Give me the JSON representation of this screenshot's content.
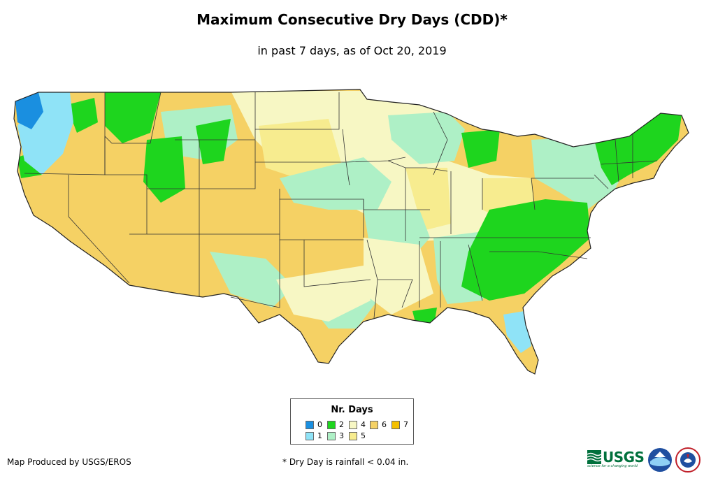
{
  "title": "Maximum Consecutive Dry Days (CDD)*",
  "subtitle": "in past 7 days, as of Oct 20, 2019",
  "legend": {
    "title": "Nr. Days",
    "items": [
      {
        "label": "0",
        "color": "#1a8fe0"
      },
      {
        "label": "1",
        "color": "#8fe3f7"
      },
      {
        "label": "2",
        "color": "#1ed51e"
      },
      {
        "label": "3",
        "color": "#aef0c6"
      },
      {
        "label": "4",
        "color": "#f7f7c4"
      },
      {
        "label": "5",
        "color": "#f7ec8f"
      },
      {
        "label": "6",
        "color": "#f5d164"
      },
      {
        "label": "7",
        "color": "#f5c000"
      }
    ]
  },
  "footer": {
    "credit": "Map Produced by USGS/EROS",
    "note": "* Dry Day is rainfall < 0.04 in."
  },
  "logos": {
    "usgs_text": "USGS",
    "usgs_tagline": "science for a changing world",
    "noaa_text": "NOAA",
    "nws_text": "NWS"
  }
}
